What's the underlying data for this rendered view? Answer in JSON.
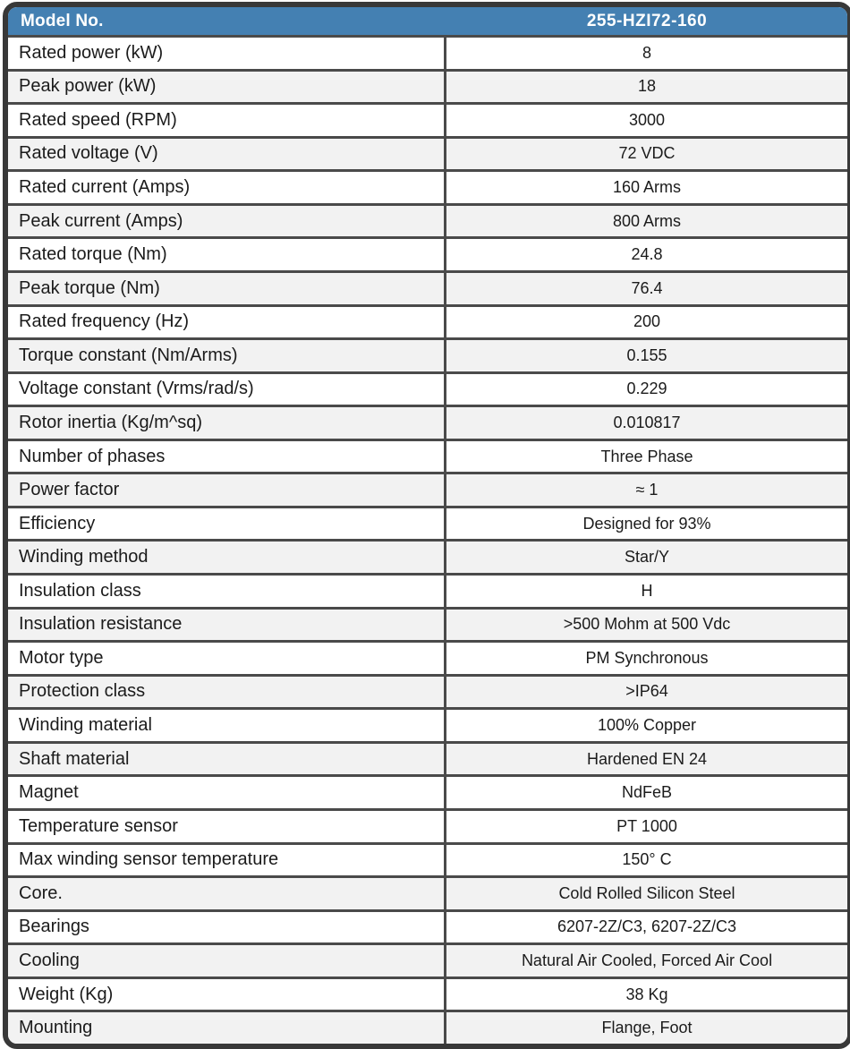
{
  "table": {
    "header": {
      "label": "Model No.",
      "value": "255-HZI72-160"
    },
    "rows": [
      {
        "label": "Rated power (kW)",
        "value": "8",
        "shaded": false
      },
      {
        "label": "Peak power (kW)",
        "value": "18",
        "shaded": true
      },
      {
        "label": "Rated speed (RPM)",
        "value": "3000",
        "shaded": false
      },
      {
        "label": "Rated voltage (V)",
        "value": "72 VDC",
        "shaded": true
      },
      {
        "label": "Rated current (Amps)",
        "value": "160 Arms",
        "shaded": false
      },
      {
        "label": "Peak current (Amps)",
        "value": "800 Arms",
        "shaded": true
      },
      {
        "label": "Rated torque (Nm)",
        "value": "24.8",
        "shaded": false
      },
      {
        "label": "Peak torque (Nm)",
        "value": "76.4",
        "shaded": true
      },
      {
        "label": "Rated frequency (Hz)",
        "value": "200",
        "shaded": false
      },
      {
        "label": "Torque constant (Nm/Arms)",
        "value": "0.155",
        "shaded": true
      },
      {
        "label": "Voltage constant (Vrms/rad/s)",
        "value": "0.229",
        "shaded": false
      },
      {
        "label": "Rotor inertia (Kg/m^sq)",
        "value": "0.010817",
        "shaded": true
      },
      {
        "label": "Number of phases",
        "value": "Three Phase",
        "shaded": false
      },
      {
        "label": "Power factor",
        "value": "≈ 1",
        "shaded": true
      },
      {
        "label": "Efficiency",
        "value": "Designed for 93%",
        "shaded": false
      },
      {
        "label": "Winding method",
        "value": "Star/Y",
        "shaded": true
      },
      {
        "label": "Insulation class",
        "value": "H",
        "shaded": false
      },
      {
        "label": "Insulation resistance",
        "value": ">500 Mohm at 500 Vdc",
        "shaded": true
      },
      {
        "label": "Motor type",
        "value": "PM Synchronous",
        "shaded": false
      },
      {
        "label": "Protection class",
        "value": ">IP64",
        "shaded": true
      },
      {
        "label": "Winding material",
        "value": "100% Copper",
        "shaded": false
      },
      {
        "label": "Shaft material",
        "value": "Hardened EN 24",
        "shaded": true
      },
      {
        "label": "Magnet",
        "value": "NdFeB",
        "shaded": false
      },
      {
        "label": "Temperature sensor",
        "value": "PT 1000",
        "shaded": false
      },
      {
        "label": "Max winding sensor temperature",
        "value": "150° C",
        "shaded": false
      },
      {
        "label": "Core.",
        "value": "Cold Rolled Silicon Steel",
        "shaded": true
      },
      {
        "label": "Bearings",
        "value": "6207-2Z/C3, 6207-2Z/C3",
        "shaded": false
      },
      {
        "label": "Cooling",
        "value": "Natural Air Cooled, Forced Air Cool",
        "shaded": true
      },
      {
        "label": "Weight (Kg)",
        "value": "38 Kg",
        "shaded": false
      },
      {
        "label": "Mounting",
        "value": "Flange, Foot",
        "shaded": true
      }
    ],
    "colors": {
      "header_bg": "#4480b2",
      "header_text": "#ffffff",
      "shaded_row_bg": "#f2f2f2",
      "row_bg": "#ffffff",
      "grid_line": "#4a4a4a",
      "outer_border": "#383838",
      "text": "#1b1b1b"
    }
  }
}
